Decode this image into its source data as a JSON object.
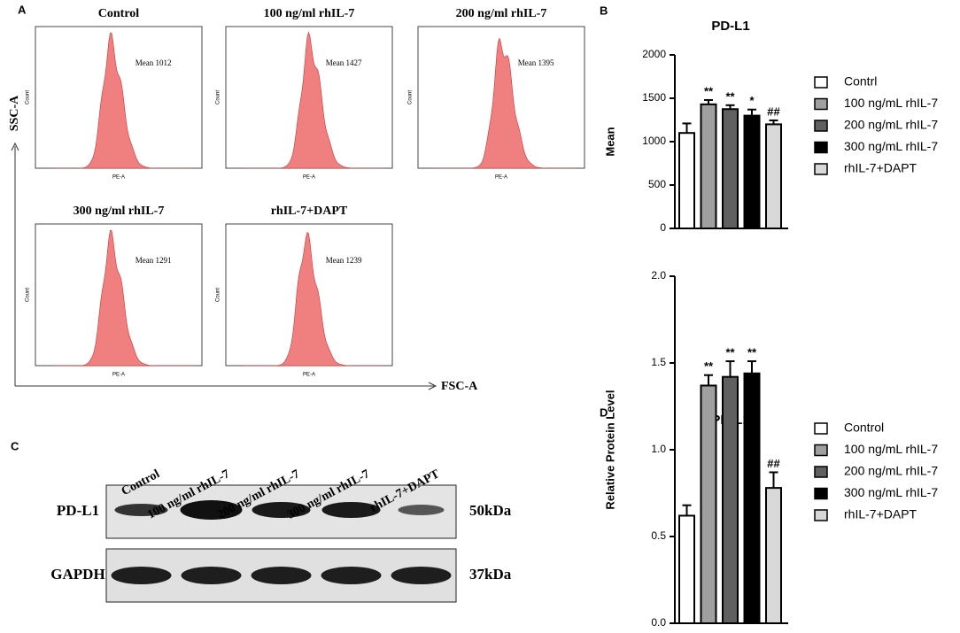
{
  "chart_data": [
    {
      "type": "bar",
      "panel": "B",
      "title": "PD-L1",
      "y_label": "Mean",
      "ylim": [
        0,
        2000
      ],
      "yticks": [
        0,
        500,
        1000,
        1500,
        2000
      ],
      "series": [
        {
          "name": "Contrl",
          "color": "#ffffff",
          "values": [
            1100
          ],
          "errors": [
            110
          ]
        },
        {
          "name": "100 ng/mL rhIL-7",
          "color": "#a0a0a0",
          "values": [
            1430
          ],
          "errors": [
            50
          ],
          "annotation": "**"
        },
        {
          "name": "200 ng/mL rhIL-7",
          "color": "#606060",
          "values": [
            1375
          ],
          "errors": [
            45
          ],
          "annotation": "**"
        },
        {
          "name": "300 ng/mL rhIL-7",
          "color": "#000000",
          "values": [
            1300
          ],
          "errors": [
            70
          ],
          "annotation": "*"
        },
        {
          "name": "rhIL-7+DAPT",
          "color": "#d8d8d8",
          "values": [
            1200
          ],
          "errors": [
            45
          ],
          "annotation": "##"
        }
      ]
    },
    {
      "type": "bar",
      "panel": "D",
      "title": "PD-L1",
      "y_label": "Relative Protein Level",
      "ylim": [
        0,
        2.0
      ],
      "yticks": [
        {
          "value": 0,
          "label": "0.0"
        },
        0.5,
        {
          "value": 1,
          "label": "1.0"
        },
        1.5,
        {
          "value": 2,
          "label": "2.0"
        }
      ],
      "series": [
        {
          "name": "Control",
          "color": "#ffffff",
          "values": [
            0.62
          ],
          "errors": [
            0.06
          ]
        },
        {
          "name": "100 ng/mL rhIL-7",
          "color": "#a0a0a0",
          "values": [
            1.37
          ],
          "errors": [
            0.06
          ],
          "annotation": "**"
        },
        {
          "name": "200 ng/mL rhIL-7",
          "color": "#606060",
          "values": [
            1.42
          ],
          "errors": [
            0.09
          ],
          "annotation": "**"
        },
        {
          "name": "300 ng/mL rhIL-7",
          "color": "#000000",
          "values": [
            1.44
          ],
          "errors": [
            0.07
          ],
          "annotation": "**"
        },
        {
          "name": "rhIL-7+DAPT",
          "color": "#d8d8d8",
          "values": [
            0.78
          ],
          "errors": [
            0.09
          ],
          "annotation": "##"
        }
      ]
    }
  ],
  "flow": {
    "panel": "A",
    "y_axis": "SSC-A",
    "x_axis": "FSC-A",
    "plot_x_label": "PE-A",
    "plot_y_label": "Count",
    "plots": [
      {
        "title": "Control",
        "mean": "Mean 1012"
      },
      {
        "title": "100 ng/ml rhIL-7",
        "mean": "Mean 1427"
      },
      {
        "title": "200 ng/ml rhIL-7",
        "mean": "Mean 1395"
      },
      {
        "title": "300 ng/ml rhIL-7",
        "mean": "Mean 1291"
      },
      {
        "title": "rhIL-7+DAPT",
        "mean": "Mean 1239"
      }
    ]
  },
  "blot": {
    "panel": "C",
    "lanes": [
      "Control",
      "100 ng/ml rhIL-7",
      "200 ng/ml rhIL-7",
      "300 ng/ml rhIL-7",
      "rhIL-7+DAPT"
    ],
    "rows": [
      {
        "protein": "PD-L1",
        "size": "50kDa"
      },
      {
        "protein": "GAPDH",
        "size": "37kDa"
      }
    ]
  }
}
